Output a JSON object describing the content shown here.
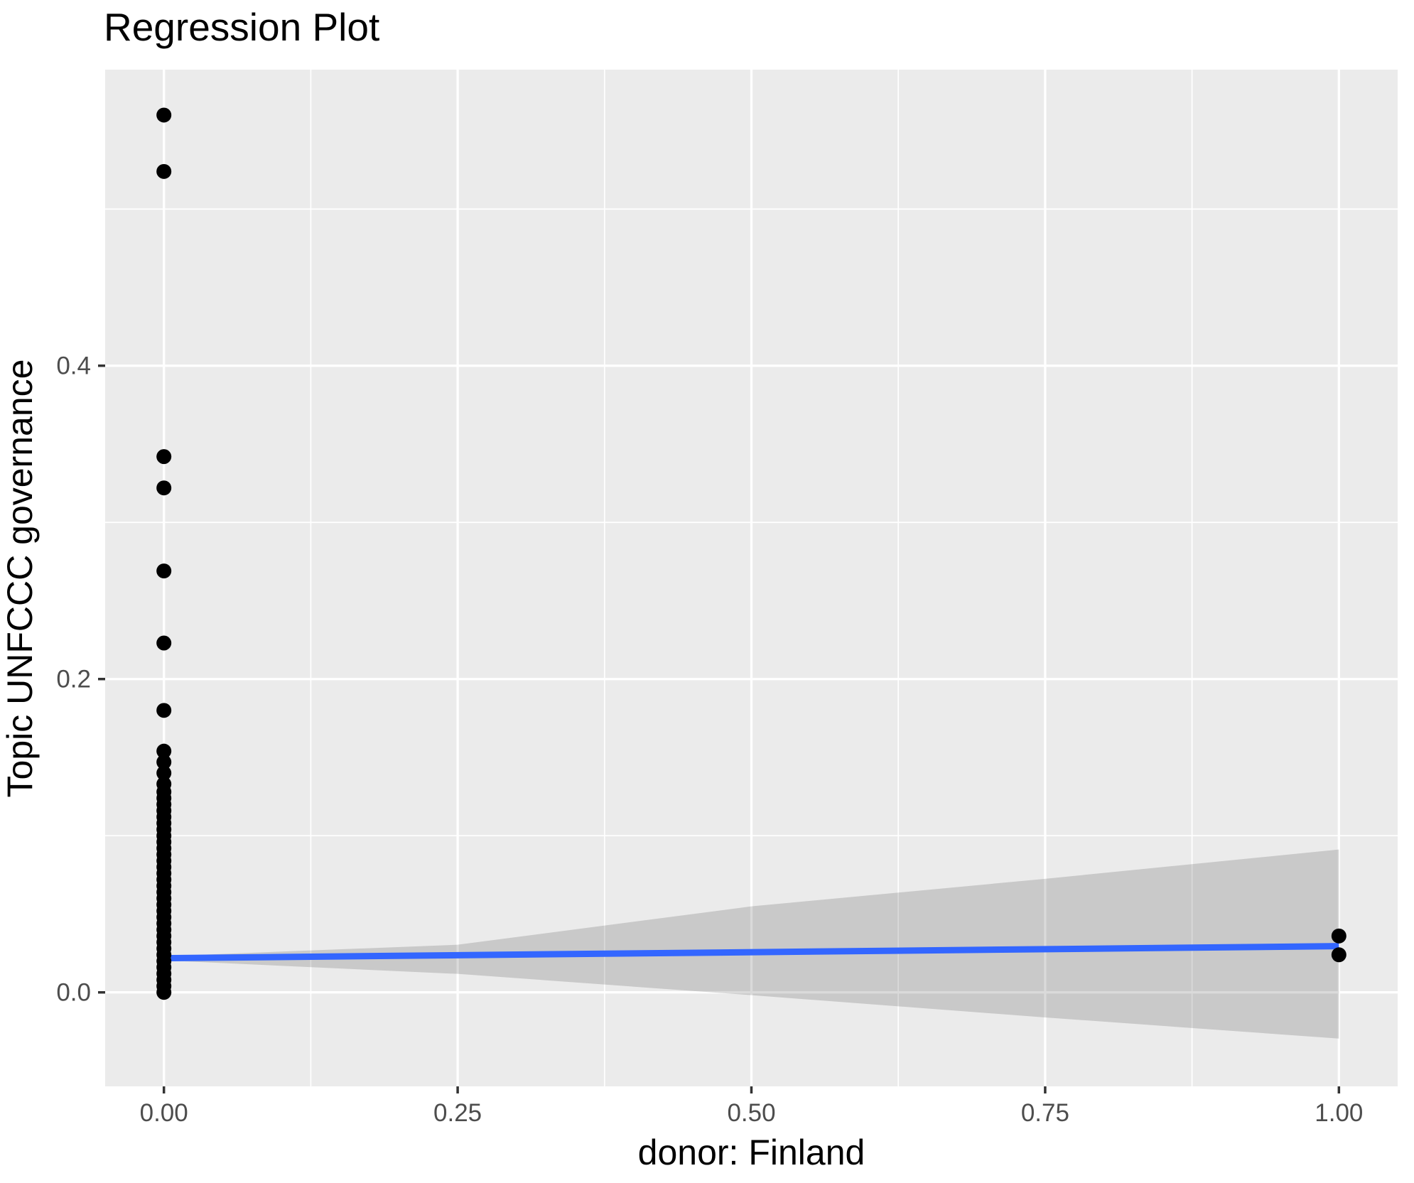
{
  "chart_data": {
    "type": "scatter",
    "title": "Regression Plot",
    "xlabel": "donor: Finland",
    "ylabel": "Topic UNFCCC governance",
    "xlim": [
      -0.05,
      1.05
    ],
    "ylim": [
      -0.06,
      0.589
    ],
    "grid": "on",
    "legend": "none",
    "x_ticks": {
      "values": [
        0.0,
        0.25,
        0.5,
        0.75,
        1.0
      ],
      "labels": [
        "0.00",
        "0.25",
        "0.50",
        "0.75",
        "1.00"
      ]
    },
    "y_ticks": {
      "values": [
        0.0,
        0.2,
        0.4
      ],
      "labels": [
        "0.0",
        "0.2",
        "0.4"
      ]
    },
    "x_minor_gridlines": [
      0.125,
      0.375,
      0.625,
      0.875
    ],
    "y_minor_gridlines": [
      0.1,
      0.3,
      0.5
    ],
    "series": [
      {
        "name": "observations",
        "type": "scatter",
        "marker": "circle",
        "color": "#000000",
        "points": [
          [
            0,
            0.56
          ],
          [
            0,
            0.524
          ],
          [
            0,
            0.342
          ],
          [
            0,
            0.322
          ],
          [
            0,
            0.269
          ],
          [
            0,
            0.223
          ],
          [
            0,
            0.18
          ],
          [
            0,
            0.154
          ],
          [
            0,
            0.147
          ],
          [
            0,
            0.14
          ],
          [
            0,
            0.133
          ],
          [
            0,
            0.128
          ],
          [
            0,
            0.124
          ],
          [
            0,
            0.12
          ],
          [
            0,
            0.116
          ],
          [
            0,
            0.112
          ],
          [
            0,
            0.108
          ],
          [
            0,
            0.104
          ],
          [
            0,
            0.1
          ],
          [
            0,
            0.096
          ],
          [
            0,
            0.092
          ],
          [
            0,
            0.088
          ],
          [
            0,
            0.084
          ],
          [
            0,
            0.08
          ],
          [
            0,
            0.076
          ],
          [
            0,
            0.072
          ],
          [
            0,
            0.068
          ],
          [
            0,
            0.064
          ],
          [
            0,
            0.06
          ],
          [
            0,
            0.056
          ],
          [
            0,
            0.052
          ],
          [
            0,
            0.048
          ],
          [
            0,
            0.044
          ],
          [
            0,
            0.04
          ],
          [
            0,
            0.036
          ],
          [
            0,
            0.032
          ],
          [
            0,
            0.028
          ],
          [
            0,
            0.024
          ],
          [
            0,
            0.02
          ],
          [
            0,
            0.016
          ],
          [
            0,
            0.012
          ],
          [
            0,
            0.008
          ],
          [
            0,
            0.004
          ],
          [
            0,
            0.0
          ],
          [
            1,
            0.036
          ],
          [
            1,
            0.024
          ]
        ]
      },
      {
        "name": "regression-line",
        "type": "line",
        "color": "#3366FF",
        "points": [
          [
            0,
            0.0218
          ],
          [
            1,
            0.0295
          ]
        ]
      },
      {
        "name": "confidence-band",
        "type": "area",
        "color": "rgba(0,0,0,0.145)",
        "upper": [
          [
            0,
            0.0231
          ],
          [
            0.25,
            0.0304
          ],
          [
            0.5,
            0.0549
          ],
          [
            0.75,
            0.0725
          ],
          [
            1,
            0.0912
          ]
        ],
        "lower": [
          [
            0,
            0.0204
          ],
          [
            0.25,
            0.0118
          ],
          [
            0.5,
            -0.0018
          ],
          [
            0.75,
            -0.016
          ],
          [
            1,
            -0.0295
          ]
        ]
      }
    ],
    "styles": {
      "panel_background": "#EBEBEB",
      "gridline_color": "#FFFFFF",
      "tick_label_color": "#4D4D4D",
      "tick_mark_color": "#333333",
      "point_radius": 10.5,
      "line_width": 9
    }
  }
}
